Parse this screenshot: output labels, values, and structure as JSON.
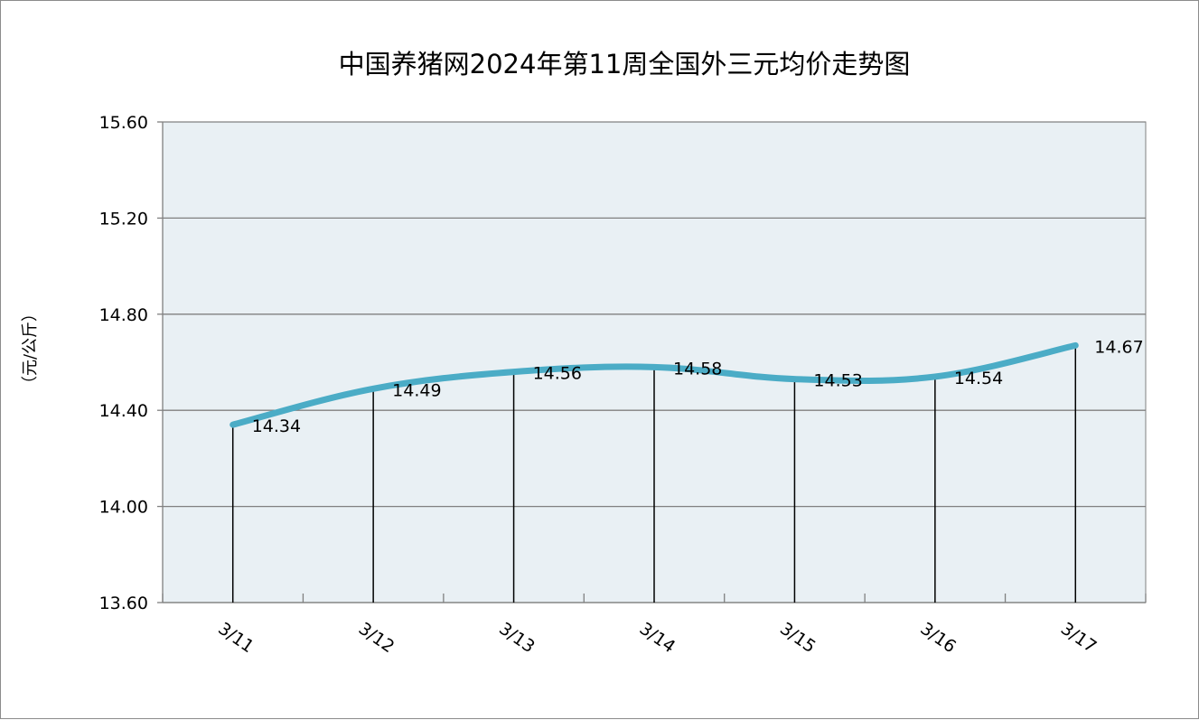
{
  "chart_data": {
    "type": "line",
    "title": "中国养猪网2024年第11周全国外三元均价走势图",
    "ylabel": "（元/公斤）",
    "xlabel": "",
    "categories": [
      "3/11",
      "3/12",
      "3/13",
      "3/14",
      "3/15",
      "3/16",
      "3/17"
    ],
    "series": [
      {
        "values": [
          14.34,
          14.49,
          14.56,
          14.58,
          14.53,
          14.54,
          14.67
        ],
        "labels": [
          "14.34",
          "14.49",
          "14.56",
          "14.58",
          "14.53",
          "14.54",
          "14.67"
        ]
      }
    ],
    "ylim": [
      13.6,
      15.6
    ],
    "yticks": [
      "13.60",
      "14.00",
      "14.40",
      "14.80",
      "15.20",
      "15.60"
    ],
    "grid": true,
    "drop_lines": true,
    "colors": {
      "line": "#4bacc6",
      "plot_background": "#e9f0f4",
      "grid": "#808080",
      "drop_line": "#000000"
    }
  }
}
